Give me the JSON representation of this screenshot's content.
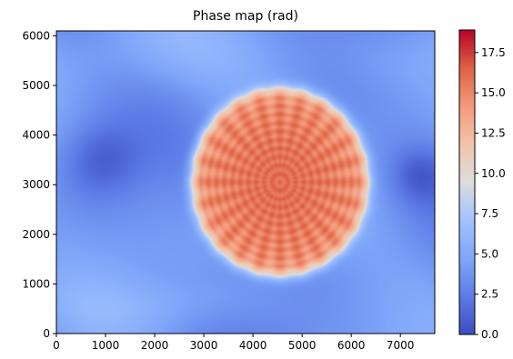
{
  "chart_data": {
    "type": "heatmap",
    "title": "Phase map (rad)",
    "xlabel": "",
    "ylabel": "",
    "xlim": [
      0,
      7700
    ],
    "ylim": [
      0,
      6100
    ],
    "x_ticks": [
      0,
      1000,
      2000,
      3000,
      4000,
      5000,
      6000,
      7000
    ],
    "y_ticks": [
      0,
      1000,
      2000,
      3000,
      4000,
      5000,
      6000
    ],
    "colorbar": {
      "min": 0.0,
      "max": 18.9,
      "ticks": [
        0.0,
        2.5,
        5.0,
        7.5,
        10.0,
        12.5,
        15.0,
        17.5
      ],
      "tick_labels": [
        "0.0",
        "2.5",
        "5.0",
        "7.5",
        "10.0",
        "12.5",
        "15.0",
        "17.5"
      ],
      "colormap": "coolwarm"
    },
    "features": {
      "disk": {
        "center": [
          4550,
          3050
        ],
        "radius_x": 1800,
        "radius_y": 1900,
        "phase_edge": 13.0,
        "phase_center": 16.0,
        "radial_spokes": 24,
        "ring_pattern": true
      },
      "background_phase": 4.0,
      "dark_regions": [
        {
          "center": [
            900,
            3500
          ],
          "radius": 900,
          "phase": 1.5
        },
        {
          "center": [
            7400,
            3200
          ],
          "radius": 650,
          "phase": 1.8
        }
      ]
    },
    "grid": false,
    "legend": "colorbar-right"
  }
}
